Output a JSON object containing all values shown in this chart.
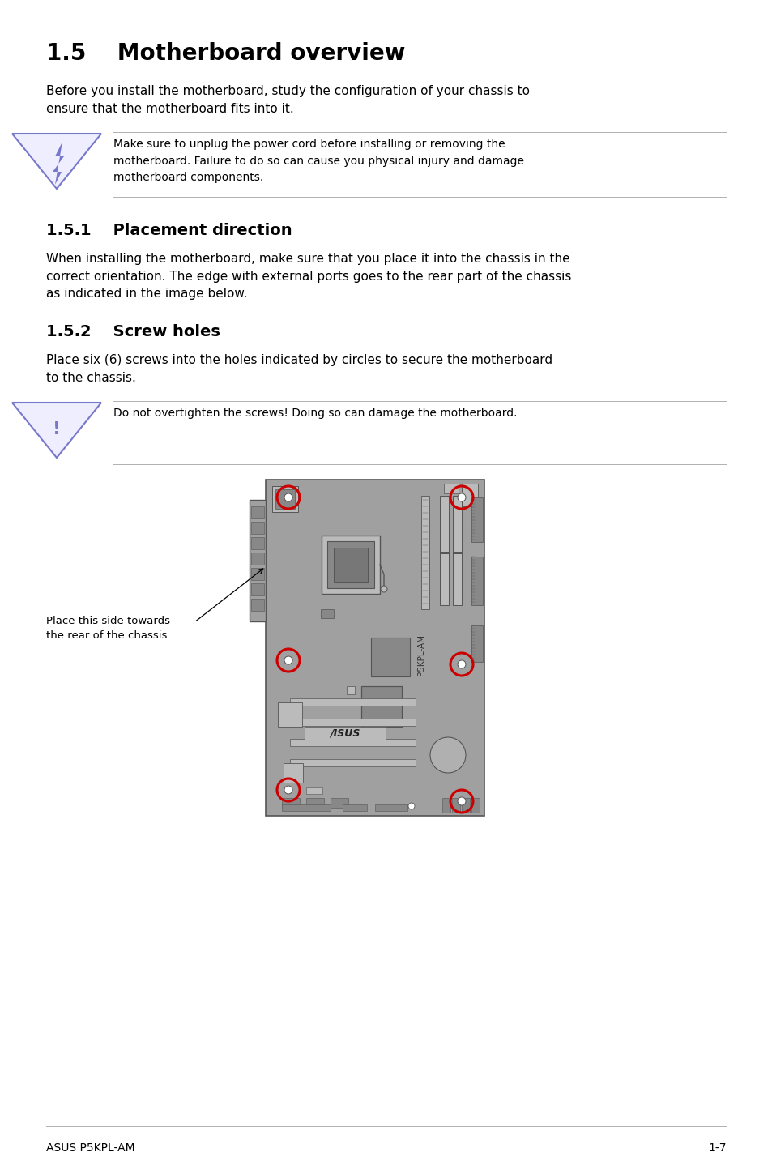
{
  "title": "1.5    Motherboard overview",
  "body_text_1": "Before you install the motherboard, study the configuration of your chassis to\nensure that the motherboard fits into it.",
  "warning_text_1": "Make sure to unplug the power cord before installing or removing the\nmotherboard. Failure to do so can cause you physical injury and damage\nmotherboard components.",
  "section_1_title": "1.5.1    Placement direction",
  "section_1_text": "When installing the motherboard, make sure that you place it into the chassis in the\ncorrect orientation. The edge with external ports goes to the rear part of the chassis\nas indicated in the image below.",
  "section_2_title": "1.5.2    Screw holes",
  "section_2_text": "Place six (6) screws into the holes indicated by circles to secure the motherboard\nto the chassis.",
  "warning_text_2": "Do not overtighten the screws! Doing so can damage the motherboard.",
  "label_text": "Place this side towards\nthe rear of the chassis",
  "footer_left": "ASUS P5KPL-AM",
  "footer_right": "1-7",
  "bg_color": "#ffffff",
  "text_color": "#000000",
  "line_color": "#b0b0b0",
  "mb_color": "#a0a0a0",
  "mb_dark": "#555555",
  "mb_light": "#bbbbbb",
  "screw_ring_color": "#cc0000",
  "warn_color": "#7777cc"
}
